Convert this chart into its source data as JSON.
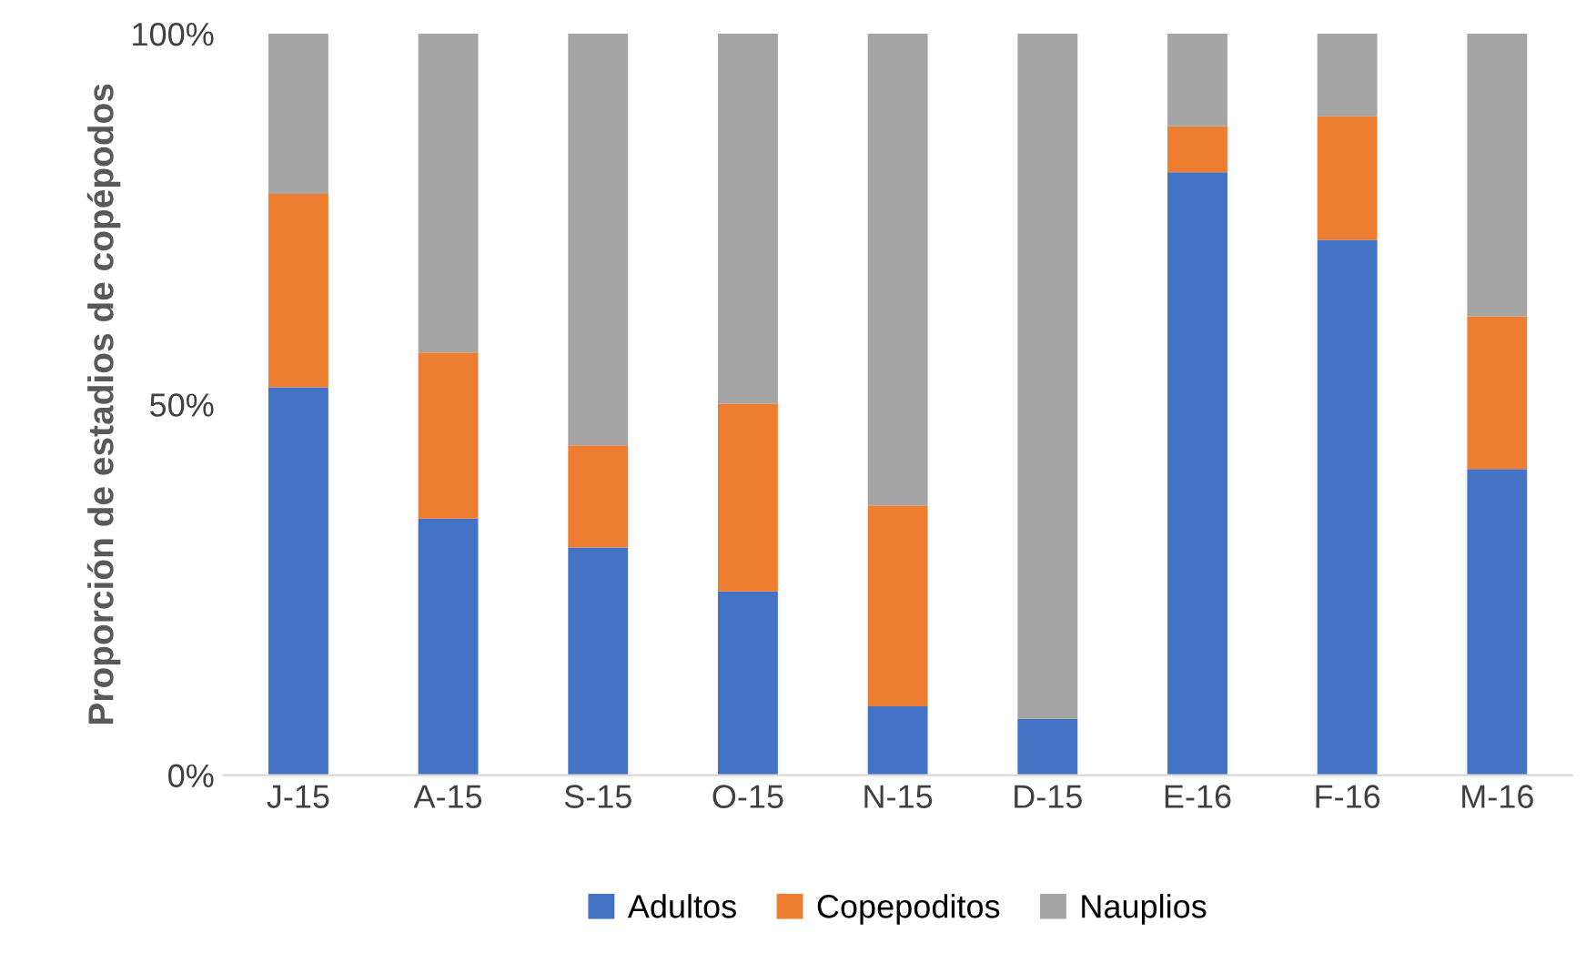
{
  "chart_data": {
    "type": "bar",
    "stacked": true,
    "ylabel": "Proporción de estadios de copépodos",
    "categories": [
      "J-15",
      "A-15",
      "S-15",
      "O-15",
      "N-15",
      "D-15",
      "E-16",
      "F-16",
      "M-16"
    ],
    "series": [
      {
        "name": "Adultos",
        "color": "#4472c4",
        "values": [
          52.3,
          34.6,
          30.7,
          24.8,
          9.3,
          7.6,
          81.3,
          72.2,
          41.3
        ]
      },
      {
        "name": "Copepoditos",
        "color": "#ed7d31",
        "values": [
          26.1,
          22.4,
          13.8,
          25.3,
          27.1,
          0,
          6.2,
          16.7,
          20.6
        ]
      },
      {
        "name": "Nauplios",
        "color": "#a5a5a5",
        "values": [
          21.6,
          43.0,
          55.5,
          49.9,
          63.6,
          92.4,
          12.5,
          11.1,
          38.1
        ]
      }
    ],
    "ylim": [
      0,
      100
    ],
    "yticks": [
      {
        "value": 0,
        "label": "0%"
      },
      {
        "value": 50,
        "label": "50%"
      },
      {
        "value": 100,
        "label": "100%"
      }
    ],
    "grid": false,
    "legend": "bottom"
  }
}
